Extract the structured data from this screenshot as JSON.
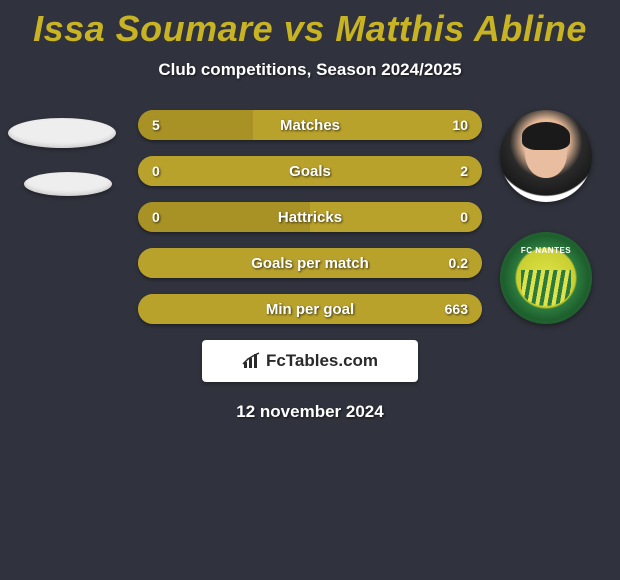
{
  "title_color": "#c8b423",
  "background_color": "#30323d",
  "header": {
    "title": "Issa Soumare vs Matthis Abline",
    "subtitle": "Club competitions, Season 2024/2025"
  },
  "left_color": "#a99225",
  "right_color": "#b9a22c",
  "empty_bar_color": "#a99225",
  "bars": [
    {
      "label": "Matches",
      "left": "5",
      "right": "10",
      "left_frac": 0.333,
      "right_frac": 0.667
    },
    {
      "label": "Goals",
      "left": "0",
      "right": "2",
      "left_frac": 0.0,
      "right_frac": 1.0
    },
    {
      "label": "Hattricks",
      "left": "0",
      "right": "0",
      "left_frac": 0.5,
      "right_frac": 0.5
    },
    {
      "label": "Goals per match",
      "left": "",
      "right": "0.2",
      "left_frac": 0.0,
      "right_frac": 1.0
    },
    {
      "label": "Min per goal",
      "left": "",
      "right": "663",
      "left_frac": 0.0,
      "right_frac": 1.0
    }
  ],
  "brand": {
    "text": "FcTables.com",
    "icon": "barchart-icon"
  },
  "date": "12 november 2024",
  "right_badges": {
    "club_text": "FC NANTES"
  }
}
